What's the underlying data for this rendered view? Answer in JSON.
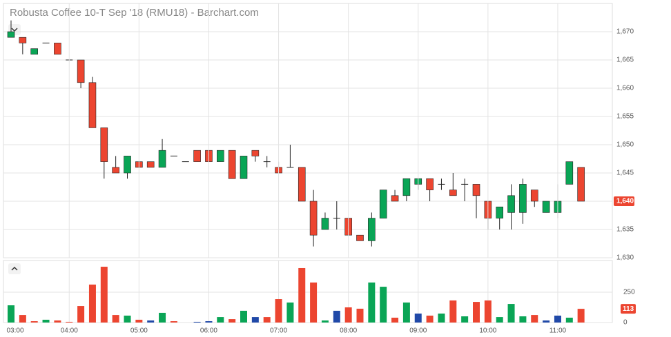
{
  "chart_data": [
    {
      "type": "candlestick",
      "title": "Robusta Coffee 10-T Sep '18 (RMU18) - Barchart.com",
      "open": [
        1669,
        1669,
        1666,
        1668,
        1668,
        1665,
        1665,
        1661,
        1653,
        1646,
        1645,
        1647,
        1647,
        1646,
        1648,
        1647,
        1649,
        1649,
        1647,
        1649,
        1644,
        1649,
        1647,
        1646,
        1646,
        1646,
        1640,
        1635,
        1637,
        1637,
        1634,
        1633,
        1637,
        1641,
        1641,
        1643,
        1644,
        1643,
        1642,
        1643,
        1643,
        1640,
        1637,
        1638,
        1638,
        1642,
        1638,
        1638,
        1643,
        1646
      ],
      "high": [
        1672,
        1669,
        1667,
        1668,
        1668,
        1665,
        1665,
        1662,
        1653,
        1648,
        1648,
        1647,
        1647,
        1651,
        1648,
        1647,
        1649,
        1649,
        1649,
        1649,
        1648,
        1649,
        1648,
        1647,
        1650,
        1646,
        1642,
        1638,
        1640,
        1637,
        1634,
        1638,
        1642,
        1642,
        1644,
        1644,
        1644,
        1644,
        1645,
        1644,
        1643,
        1640,
        1639,
        1643,
        1644,
        1642,
        1640,
        1643,
        1647,
        1646
      ],
      "low": [
        1669,
        1666,
        1666,
        1668,
        1666,
        1665,
        1660,
        1653,
        1644,
        1645,
        1644,
        1646,
        1646,
        1646,
        1648,
        1647,
        1647,
        1647,
        1647,
        1644,
        1644,
        1647,
        1646,
        1645,
        1646,
        1640,
        1632,
        1635,
        1635,
        1634,
        1633,
        1632,
        1637,
        1640,
        1640,
        1642,
        1640,
        1642,
        1641,
        1640,
        1637,
        1635,
        1635,
        1635,
        1636,
        1639,
        1638,
        1637,
        1643,
        1640
      ],
      "close": [
        1670,
        1668,
        1667,
        1668,
        1666,
        1665,
        1661,
        1653,
        1647,
        1645,
        1648,
        1646,
        1646,
        1649,
        1648,
        1647,
        1647,
        1647,
        1649,
        1644,
        1648,
        1648,
        1647,
        1645,
        1646,
        1640,
        1634,
        1637,
        1637,
        1634,
        1633,
        1637,
        1642,
        1640,
        1644,
        1644,
        1642,
        1643,
        1641,
        1643,
        1641,
        1637,
        1639,
        1641,
        1643,
        1640,
        1640,
        1640,
        1647,
        1640
      ],
      "up_color": "#0aa556",
      "down_color": "#ec4530",
      "ylim": [
        1630,
        1675
      ],
      "yticks": [
        {
          "value": 1630,
          "label": "1,630"
        },
        {
          "value": 1635,
          "label": "1,635"
        },
        {
          "value": 1640,
          "label": "1,640"
        },
        {
          "value": 1645,
          "label": "1,645"
        },
        {
          "value": 1650,
          "label": "1,650"
        },
        {
          "value": 1655,
          "label": "1,655"
        },
        {
          "value": 1660,
          "label": "1,660"
        },
        {
          "value": 1665,
          "label": "1,665"
        },
        {
          "value": 1670,
          "label": "1,670"
        }
      ],
      "last_value": {
        "value": 1640,
        "label": "1,640"
      },
      "grid": true
    },
    {
      "type": "bar",
      "categories": [
        "03:00",
        null,
        null,
        null,
        null,
        "04:00",
        null,
        null,
        null,
        null,
        null,
        "05:00",
        null,
        null,
        null,
        null,
        null,
        "06:00",
        null,
        null,
        null,
        null,
        null,
        "07:00",
        null,
        null,
        null,
        null,
        null,
        "08:00",
        null,
        null,
        null,
        null,
        null,
        "09:00",
        null,
        null,
        null,
        null,
        null,
        "10:00",
        null,
        null,
        null,
        null,
        null,
        "11:00",
        null,
        null
      ],
      "values": [
        142,
        62,
        11,
        23,
        17,
        6,
        136,
        313,
        460,
        62,
        57,
        23,
        17,
        80,
        11,
        0,
        6,
        11,
        45,
        28,
        97,
        45,
        45,
        193,
        165,
        449,
        330,
        17,
        97,
        125,
        114,
        330,
        295,
        40,
        165,
        74,
        57,
        74,
        182,
        51,
        170,
        182,
        45,
        153,
        51,
        62,
        17,
        57,
        40,
        113
      ],
      "colors": [
        "#0aa556",
        "#ec4530",
        "#ec4530",
        "#0aa556",
        "#ec4530",
        "#ec4530",
        "#ec4530",
        "#ec4530",
        "#ec4530",
        "#ec4530",
        "#0aa556",
        "#ec4530",
        "#2049a8",
        "#0aa556",
        "#ec4530",
        "#ec4530",
        "#2049a8",
        "#2049a8",
        "#0aa556",
        "#ec4530",
        "#0aa556",
        "#2049a8",
        "#ec4530",
        "#ec4530",
        "#0aa556",
        "#ec4530",
        "#ec4530",
        "#0aa556",
        "#2049a8",
        "#ec4530",
        "#ec4530",
        "#0aa556",
        "#0aa556",
        "#ec4530",
        "#0aa556",
        "#2049a8",
        "#ec4530",
        "#0aa556",
        "#ec4530",
        "#0aa556",
        "#ec4530",
        "#ec4530",
        "#0aa556",
        "#0aa556",
        "#0aa556",
        "#ec4530",
        "#2049a8",
        "#2049a8",
        "#0aa556",
        "#ec4530"
      ],
      "ylim": [
        0,
        500
      ],
      "yticks": [
        0,
        250
      ],
      "last_value": 113,
      "grid": true
    }
  ]
}
